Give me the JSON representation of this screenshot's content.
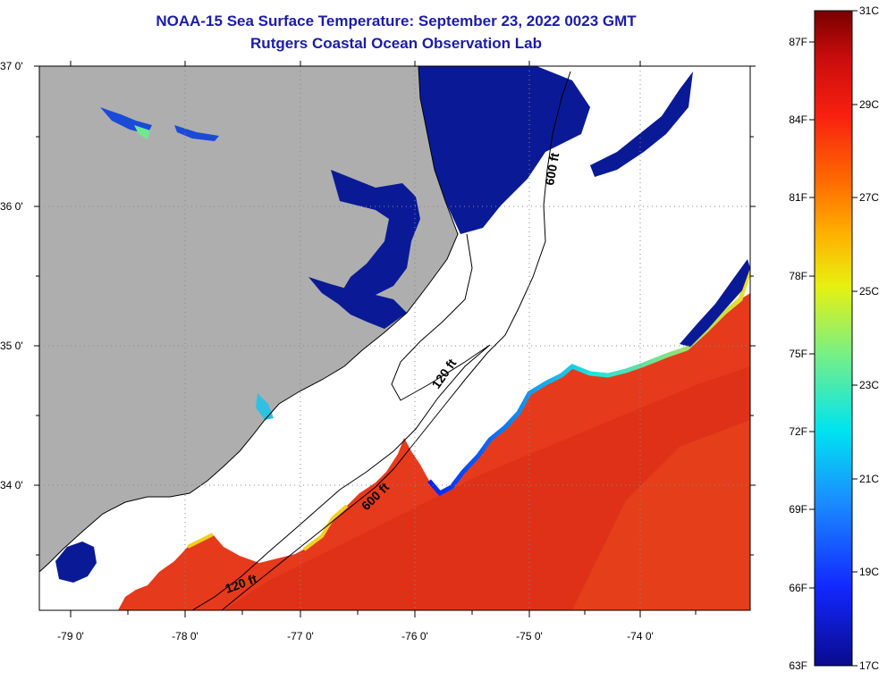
{
  "title": "NOAA-15 Sea Surface Temperature:  September 23, 2022 0023 GMT",
  "subtitle": "Rutgers Coastal Ocean Observation Lab",
  "map": {
    "lat_labels": [
      "37 0'",
      "36 0'",
      "35 0'",
      "34 0'"
    ],
    "lon_labels": [
      "-79 0'",
      "-78 0'",
      "-77 0'",
      "-76 0'",
      "-75 0'",
      "-74 0'"
    ],
    "contour_labels": [
      "600 ft",
      "120 ft",
      "600 ft",
      "120 ft"
    ],
    "colors": {
      "land": "#aeaeae",
      "cloud": "#ffffff",
      "cold_water": "#0a1a96",
      "warm_water": "#e8321a"
    }
  },
  "colorbar": {
    "fahrenheit": [
      "87F",
      "84F",
      "81F",
      "78F",
      "75F",
      "72F",
      "69F",
      "66F",
      "63F"
    ],
    "celsius": [
      "31C",
      "29C",
      "27C",
      "25C",
      "23C",
      "21C",
      "19C",
      "17C"
    ],
    "range_c": [
      17,
      31
    ],
    "range_f": [
      63,
      87
    ]
  }
}
